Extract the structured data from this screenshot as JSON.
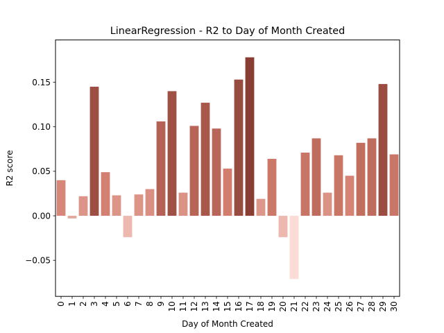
{
  "chart_data": {
    "type": "bar",
    "title": "LinearRegression - R2 to Day of Month Created",
    "xlabel": "Day of Month Created",
    "ylabel": "R2 score",
    "categories": [
      "0",
      "1",
      "2",
      "3",
      "4",
      "5",
      "6",
      "7",
      "8",
      "9",
      "10",
      "11",
      "12",
      "13",
      "14",
      "15",
      "16",
      "17",
      "18",
      "19",
      "20",
      "21",
      "22",
      "23",
      "24",
      "25",
      "26",
      "27",
      "28",
      "29",
      "30"
    ],
    "values": [
      0.04,
      -0.003,
      0.022,
      0.145,
      0.049,
      0.023,
      -0.024,
      0.024,
      0.03,
      0.106,
      0.14,
      0.026,
      0.101,
      0.127,
      0.098,
      0.053,
      0.153,
      0.178,
      0.019,
      0.064,
      -0.024,
      -0.071,
      0.071,
      0.087,
      0.026,
      0.068,
      0.045,
      0.082,
      0.087,
      0.148,
      0.069
    ],
    "ylim": [
      -0.0905,
      0.1975
    ],
    "yticks": [
      -0.05,
      0.0,
      0.05,
      0.1,
      0.15
    ],
    "ytick_labels": [
      "−0.05",
      "0.00",
      "0.05",
      "0.10",
      "0.15"
    ],
    "grid": false,
    "colormap": {
      "low": "#fbdcd6",
      "mid": "#d27d6e",
      "high": "#8a3e33"
    }
  }
}
